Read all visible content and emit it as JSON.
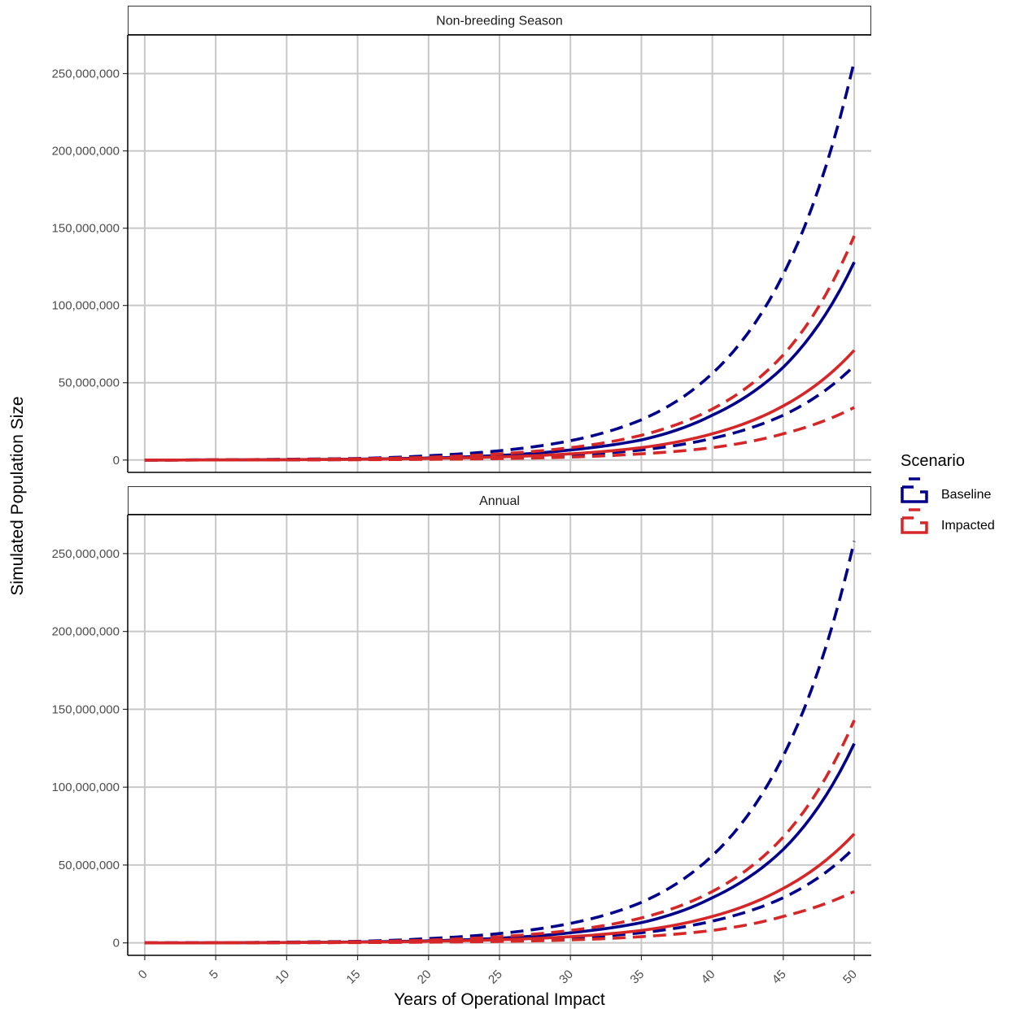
{
  "chart_data": {
    "type": "line",
    "x_label": "Years of Operational Impact",
    "y_label": "Simulated Population Size",
    "x_ticks": [
      0,
      5,
      10,
      15,
      20,
      25,
      30,
      35,
      40,
      45,
      50
    ],
    "y_ticks": [
      0,
      50000000,
      100000000,
      150000000,
      200000000,
      250000000
    ],
    "y_tick_labels": [
      "0",
      "50,000,000",
      "100,000,000",
      "150,000,000",
      "200,000,000",
      "250,000,000"
    ],
    "xlim": [
      -1.2,
      51.2
    ],
    "ylim": [
      -8000000,
      275000000
    ],
    "grid": true,
    "legend": {
      "title": "Scenario",
      "position": "right",
      "entries": [
        {
          "name": "Baseline",
          "color": "#00008B"
        },
        {
          "name": "Impacted",
          "color": "#D62728"
        }
      ]
    },
    "panels": [
      {
        "title": "Non-breeding Season",
        "series": [
          {
            "name": "Baseline",
            "role": "upper",
            "color": "#00008B",
            "dashed": true,
            "x": [
              0,
              5,
              10,
              15,
              20,
              25,
              30,
              35,
              40,
              45,
              50
            ],
            "y": [
              5000,
              150000,
              500000,
              1000000,
              2800000,
              6000000,
              12500000,
              26000000,
              56000000,
              120000000,
              258000000
            ]
          },
          {
            "name": "Baseline",
            "role": "mean",
            "color": "#00008B",
            "dashed": false,
            "x": [
              0,
              5,
              10,
              15,
              20,
              25,
              30,
              35,
              40,
              45,
              50
            ],
            "y": [
              3000,
              80000,
              250000,
              600000,
              1300000,
              3000000,
              6500000,
              13000000,
              29000000,
              60000000,
              128000000
            ]
          },
          {
            "name": "Baseline",
            "role": "lower",
            "color": "#00008B",
            "dashed": true,
            "x": [
              0,
              5,
              10,
              15,
              20,
              25,
              30,
              35,
              40,
              45,
              50
            ],
            "y": [
              2000,
              40000,
              120000,
              300000,
              700000,
              1500000,
              3200000,
              6500000,
              14000000,
              29000000,
              61000000
            ]
          },
          {
            "name": "Impacted",
            "role": "upper",
            "color": "#D62728",
            "dashed": true,
            "x": [
              0,
              5,
              10,
              15,
              20,
              25,
              30,
              35,
              40,
              45,
              50
            ],
            "y": [
              4000,
              100000,
              350000,
              800000,
              1800000,
              4000000,
              8000000,
              16000000,
              33000000,
              68000000,
              145000000
            ]
          },
          {
            "name": "Impacted",
            "role": "mean",
            "color": "#D62728",
            "dashed": false,
            "x": [
              0,
              5,
              10,
              15,
              20,
              25,
              30,
              35,
              40,
              45,
              50
            ],
            "y": [
              3000,
              60000,
              200000,
              450000,
              1000000,
              2000000,
              4000000,
              8000000,
              17000000,
              35000000,
              71000000
            ]
          },
          {
            "name": "Impacted",
            "role": "lower",
            "color": "#D62728",
            "dashed": true,
            "x": [
              0,
              5,
              10,
              15,
              20,
              25,
              30,
              35,
              40,
              45,
              50
            ],
            "y": [
              2000,
              30000,
              100000,
              200000,
              450000,
              900000,
              1900000,
              4000000,
              8000000,
              17000000,
              34000000
            ]
          }
        ]
      },
      {
        "title": "Annual",
        "series": [
          {
            "name": "Baseline",
            "role": "upper",
            "color": "#00008B",
            "dashed": true,
            "x": [
              0,
              5,
              10,
              15,
              20,
              25,
              30,
              35,
              40,
              45,
              50
            ],
            "y": [
              5000,
              150000,
              500000,
              1000000,
              2800000,
              6000000,
              12500000,
              26000000,
              56000000,
              120000000,
              258000000
            ]
          },
          {
            "name": "Baseline",
            "role": "mean",
            "color": "#00008B",
            "dashed": false,
            "x": [
              0,
              5,
              10,
              15,
              20,
              25,
              30,
              35,
              40,
              45,
              50
            ],
            "y": [
              3000,
              80000,
              250000,
              600000,
              1300000,
              3000000,
              6500000,
              13000000,
              29000000,
              60000000,
              128000000
            ]
          },
          {
            "name": "Baseline",
            "role": "lower",
            "color": "#00008B",
            "dashed": true,
            "x": [
              0,
              5,
              10,
              15,
              20,
              25,
              30,
              35,
              40,
              45,
              50
            ],
            "y": [
              2000,
              40000,
              120000,
              300000,
              700000,
              1500000,
              3200000,
              6500000,
              14000000,
              29000000,
              61000000
            ]
          },
          {
            "name": "Impacted",
            "role": "upper",
            "color": "#D62728",
            "dashed": true,
            "x": [
              0,
              5,
              10,
              15,
              20,
              25,
              30,
              35,
              40,
              45,
              50
            ],
            "y": [
              4000,
              100000,
              350000,
              800000,
              1800000,
              4000000,
              8000000,
              16000000,
              33000000,
              68000000,
              143000000
            ]
          },
          {
            "name": "Impacted",
            "role": "mean",
            "color": "#D62728",
            "dashed": false,
            "x": [
              0,
              5,
              10,
              15,
              20,
              25,
              30,
              35,
              40,
              45,
              50
            ],
            "y": [
              3000,
              60000,
              200000,
              450000,
              1000000,
              2000000,
              4000000,
              8000000,
              17000000,
              35000000,
              70000000
            ]
          },
          {
            "name": "Impacted",
            "role": "lower",
            "color": "#D62728",
            "dashed": true,
            "x": [
              0,
              5,
              10,
              15,
              20,
              25,
              30,
              35,
              40,
              45,
              50
            ],
            "y": [
              2000,
              30000,
              100000,
              200000,
              450000,
              900000,
              1900000,
              4000000,
              8000000,
              17000000,
              33000000
            ]
          }
        ]
      }
    ]
  }
}
